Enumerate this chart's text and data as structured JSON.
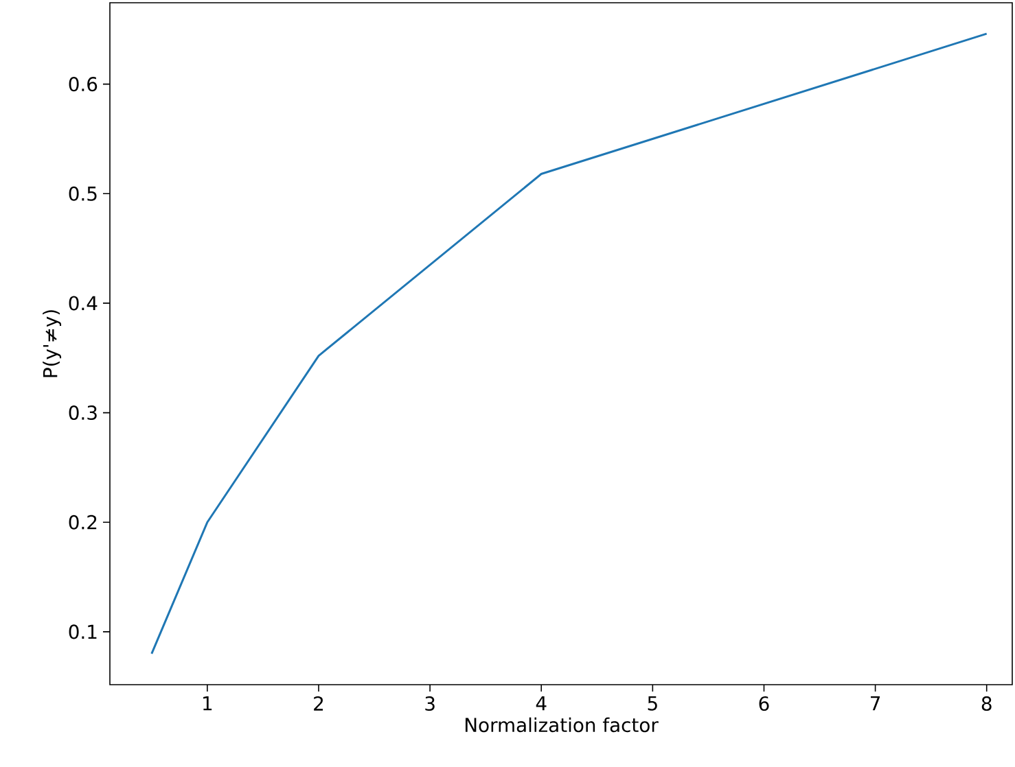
{
  "chart_data": {
    "type": "line",
    "xlabel": "Normalization factor",
    "ylabel": "P(y'≠y)",
    "x": [
      0.5,
      1,
      2,
      4,
      8
    ],
    "series": [
      {
        "color": "#1f77b4",
        "values": [
          0.08,
          0.2,
          0.352,
          0.518,
          0.646
        ]
      }
    ],
    "xlim": [
      0.125,
      8.23
    ],
    "ylim": [
      0.0517,
      0.6743
    ],
    "xticks": [
      1,
      2,
      3,
      4,
      5,
      6,
      7,
      8
    ],
    "yticks": [
      0.1,
      0.2,
      0.3,
      0.4,
      0.5,
      0.6
    ],
    "grid": false,
    "legend": false,
    "marker": "none",
    "line_style": "solid"
  }
}
